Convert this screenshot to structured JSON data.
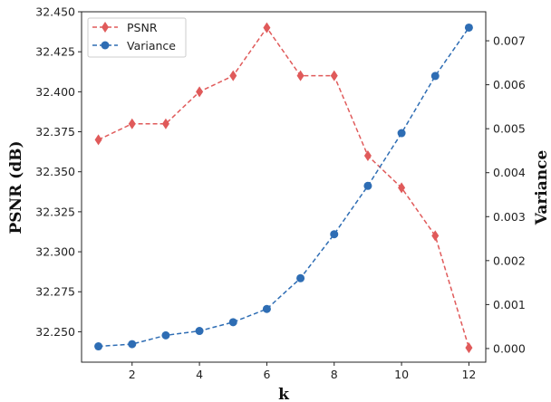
{
  "chart_data": {
    "type": "line",
    "title": "",
    "xlabel": "k",
    "ylabel": "PSNR (dB)",
    "y2label": "Variance",
    "x": [
      1,
      2,
      3,
      4,
      5,
      6,
      7,
      8,
      9,
      10,
      11,
      12
    ],
    "xticks": [
      "2",
      "4",
      "6",
      "8",
      "10",
      "12"
    ],
    "xtick_values": [
      2,
      4,
      6,
      8,
      10,
      12
    ],
    "xlim": [
      0.5,
      12.5
    ],
    "ylim": [
      32.231,
      32.45
    ],
    "y2lim": [
      -0.00031,
      0.00766
    ],
    "yticks": [
      "32.250",
      "32.275",
      "32.300",
      "32.325",
      "32.350",
      "32.375",
      "32.400",
      "32.425",
      "32.450"
    ],
    "ytick_values": [
      32.25,
      32.275,
      32.3,
      32.325,
      32.35,
      32.375,
      32.4,
      32.425,
      32.45
    ],
    "y2ticks": [
      "0.000",
      "0.001",
      "0.002",
      "0.003",
      "0.004",
      "0.005",
      "0.006",
      "0.007"
    ],
    "y2tick_values": [
      0,
      0.001,
      0.002,
      0.003,
      0.004,
      0.005,
      0.006,
      0.007
    ],
    "legend_position": "top-left",
    "series": [
      {
        "name": "PSNR",
        "axis": "left",
        "color": "#e05a5a",
        "marker": "diamond",
        "values": [
          32.37,
          32.38,
          32.38,
          32.4,
          32.41,
          32.44,
          32.41,
          32.41,
          32.36,
          32.34,
          32.31,
          32.24
        ]
      },
      {
        "name": "Variance",
        "axis": "right",
        "color": "#2e6db4",
        "marker": "circle",
        "values": [
          5e-05,
          0.0001,
          0.0003,
          0.0004,
          0.0006,
          0.0009,
          0.0016,
          0.0026,
          0.0037,
          0.0049,
          0.0062,
          0.0073
        ]
      }
    ]
  }
}
